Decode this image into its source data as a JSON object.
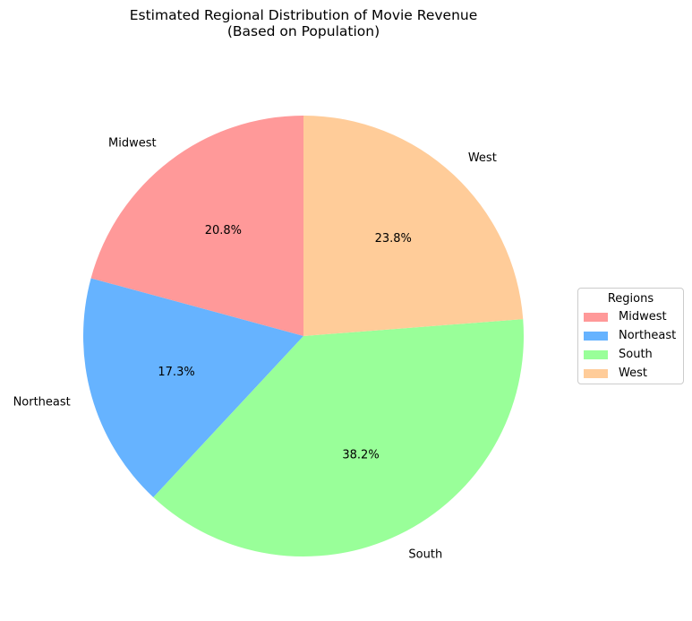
{
  "chart_data": {
    "type": "pie",
    "title_line1": "Estimated Regional Distribution of Movie Revenue",
    "title_line2": "(Based on Population)",
    "categories": [
      "Midwest",
      "Northeast",
      "South",
      "West"
    ],
    "values": [
      20.8,
      17.3,
      38.2,
      23.8
    ],
    "value_labels": [
      "20.8%",
      "17.3%",
      "38.2%",
      "23.8%"
    ],
    "colors": [
      "#ff9999",
      "#66b3ff",
      "#99ff99",
      "#ffcc99"
    ],
    "start_angle_deg": 90,
    "direction": "counterclockwise",
    "legend": {
      "title": "Regions",
      "placement": "right"
    }
  }
}
